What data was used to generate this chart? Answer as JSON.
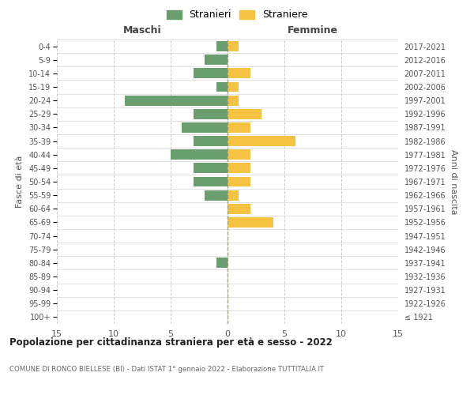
{
  "age_groups": [
    "100+",
    "95-99",
    "90-94",
    "85-89",
    "80-84",
    "75-79",
    "70-74",
    "65-69",
    "60-64",
    "55-59",
    "50-54",
    "45-49",
    "40-44",
    "35-39",
    "30-34",
    "25-29",
    "20-24",
    "15-19",
    "10-14",
    "5-9",
    "0-4"
  ],
  "birth_years": [
    "≤ 1921",
    "1922-1926",
    "1927-1931",
    "1932-1936",
    "1937-1941",
    "1942-1946",
    "1947-1951",
    "1952-1956",
    "1957-1961",
    "1962-1966",
    "1967-1971",
    "1972-1976",
    "1977-1981",
    "1982-1986",
    "1987-1991",
    "1992-1996",
    "1997-2001",
    "2002-2006",
    "2007-2011",
    "2012-2016",
    "2017-2021"
  ],
  "males": [
    0,
    0,
    0,
    0,
    1,
    0,
    0,
    0,
    0,
    2,
    3,
    3,
    5,
    3,
    4,
    3,
    9,
    1,
    3,
    2,
    1
  ],
  "females": [
    0,
    0,
    0,
    0,
    0,
    0,
    0,
    4,
    2,
    1,
    2,
    2,
    2,
    6,
    2,
    3,
    1,
    1,
    2,
    0,
    1
  ],
  "male_color": "#6b9e6e",
  "female_color": "#f5c242",
  "title": "Popolazione per cittadinanza straniera per età e sesso - 2022",
  "subtitle": "COMUNE DI RONCO BIELLESE (BI) - Dati ISTAT 1° gennaio 2022 - Elaborazione TUTTITALIA.IT",
  "xlabel_left": "Maschi",
  "xlabel_right": "Femmine",
  "ylabel_left": "Fasce di età",
  "ylabel_right": "Anni di nascita",
  "legend_male": "Stranieri",
  "legend_female": "Straniere",
  "xlim": 15,
  "bg_color": "#ffffff",
  "grid_color": "#cccccc",
  "bar_height": 0.75
}
